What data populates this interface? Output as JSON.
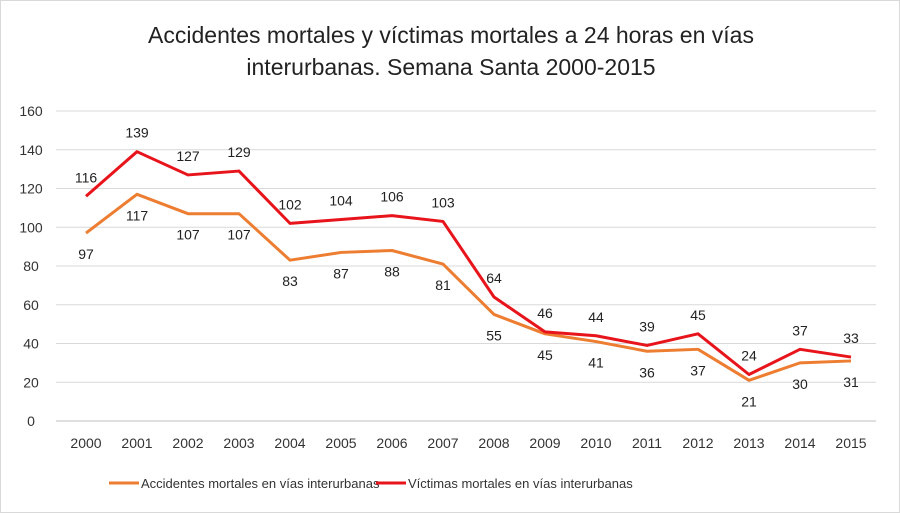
{
  "chart_data": {
    "type": "line",
    "title_line1": "Accidentes mortales y víctimas mortales a 24 horas en vías",
    "title_line2": "interurbanas. Semana Santa 2000-2015",
    "xlabel": "",
    "ylabel": "",
    "ylim": [
      0,
      160
    ],
    "yticks": [
      0,
      20,
      40,
      60,
      80,
      100,
      120,
      140,
      160
    ],
    "grid": true,
    "legend_position": "bottom",
    "categories": [
      "2000",
      "2001",
      "2002",
      "2003",
      "2004",
      "2005",
      "2006",
      "2007",
      "2008",
      "2009",
      "2010",
      "2011",
      "2012",
      "2013",
      "2014",
      "2015"
    ],
    "series": [
      {
        "name": "Accidentes mortales en vías interurbanas",
        "color": "#ED7D31",
        "label_position": "below",
        "values": [
          97,
          117,
          107,
          107,
          83,
          87,
          88,
          81,
          55,
          45,
          41,
          36,
          37,
          21,
          30,
          31
        ]
      },
      {
        "name": "Víctimas mortales en vías interurbanas",
        "color": "#E8141B",
        "label_position": "above",
        "values": [
          116,
          139,
          127,
          129,
          102,
          104,
          106,
          103,
          64,
          46,
          44,
          39,
          45,
          24,
          37,
          33
        ]
      }
    ]
  }
}
